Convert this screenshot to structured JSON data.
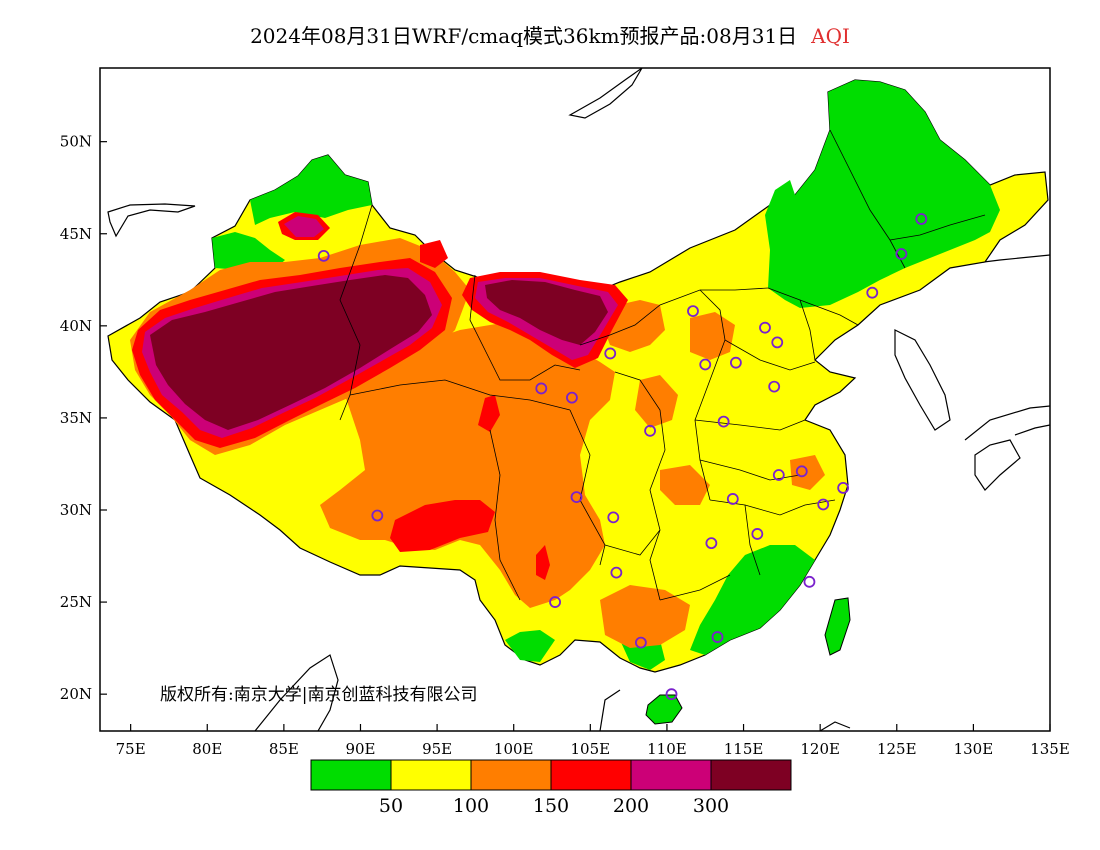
{
  "title": {
    "main": "2024年08月31日WRF/cmaq模式36km预报产品:08月31日",
    "variable": "AQI"
  },
  "copyright": "版权所有:南京大学|南京创蓝科技有限公司",
  "axes": {
    "x_labels": [
      "75E",
      "80E",
      "85E",
      "90E",
      "95E",
      "100E",
      "105E",
      "110E",
      "115E",
      "120E",
      "125E",
      "130E",
      "135E"
    ],
    "y_labels": [
      "50N",
      "45N",
      "40N",
      "35N",
      "30N",
      "25N",
      "20N"
    ],
    "lon_range": [
      73,
      135
    ],
    "lat_range": [
      18,
      54
    ]
  },
  "legend": {
    "colors": [
      "#00dd00",
      "#ffff00",
      "#ff7e00",
      "#ff0000",
      "#cc0077",
      "#7e0023"
    ],
    "ticks": [
      "50",
      "100",
      "150",
      "200",
      "300"
    ]
  },
  "stations": [
    {
      "lon": 87.6,
      "lat": 43.8
    },
    {
      "lon": 91.1,
      "lat": 29.7
    },
    {
      "lon": 101.8,
      "lat": 36.6
    },
    {
      "lon": 103.8,
      "lat": 36.1
    },
    {
      "lon": 106.3,
      "lat": 38.5
    },
    {
      "lon": 104.1,
      "lat": 30.7
    },
    {
      "lon": 106.5,
      "lat": 29.6
    },
    {
      "lon": 106.7,
      "lat": 26.6
    },
    {
      "lon": 102.7,
      "lat": 25.0
    },
    {
      "lon": 108.9,
      "lat": 34.3
    },
    {
      "lon": 111.7,
      "lat": 40.8
    },
    {
      "lon": 112.5,
      "lat": 37.9
    },
    {
      "lon": 114.5,
      "lat": 38.0
    },
    {
      "lon": 116.4,
      "lat": 39.9
    },
    {
      "lon": 117.2,
      "lat": 39.1
    },
    {
      "lon": 117.0,
      "lat": 36.7
    },
    {
      "lon": 113.7,
      "lat": 34.8
    },
    {
      "lon": 114.3,
      "lat": 30.6
    },
    {
      "lon": 112.9,
      "lat": 28.2
    },
    {
      "lon": 115.9,
      "lat": 28.7
    },
    {
      "lon": 117.3,
      "lat": 31.9
    },
    {
      "lon": 118.8,
      "lat": 32.1
    },
    {
      "lon": 120.2,
      "lat": 30.3
    },
    {
      "lon": 121.5,
      "lat": 31.2
    },
    {
      "lon": 119.3,
      "lat": 26.1
    },
    {
      "lon": 113.3,
      "lat": 23.1
    },
    {
      "lon": 108.3,
      "lat": 22.8
    },
    {
      "lon": 110.3,
      "lat": 20.0
    },
    {
      "lon": 123.4,
      "lat": 41.8
    },
    {
      "lon": 125.3,
      "lat": 43.9
    },
    {
      "lon": 126.6,
      "lat": 45.8
    }
  ]
}
